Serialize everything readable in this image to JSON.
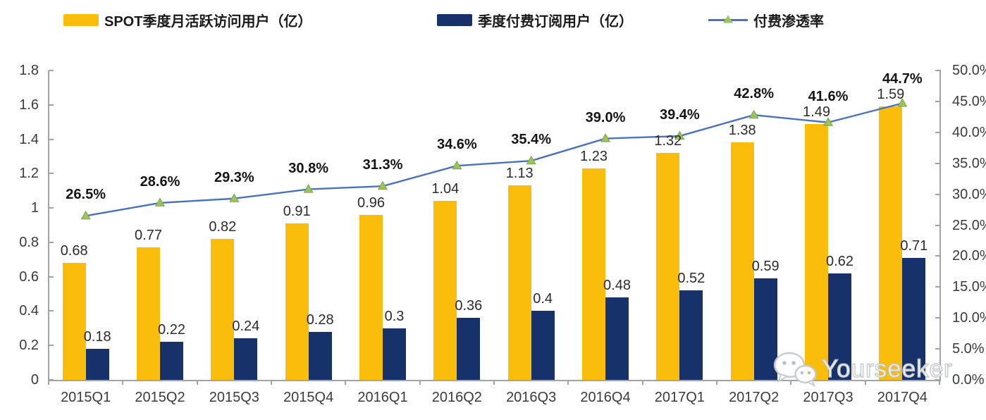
{
  "legend": {
    "items": [
      {
        "label": "SPOT季度月活跃访问用户（亿）",
        "type": "bar",
        "color": "#FBBD0B"
      },
      {
        "label": "季度付费订阅用户（亿）",
        "type": "bar",
        "color": "#17316B"
      },
      {
        "label": "付费渗透率",
        "type": "line",
        "color": "#4A73BE",
        "marker_color": "#9CC25E"
      }
    ]
  },
  "chart_data": {
    "type": "combo-bar-line",
    "title": "",
    "categories": [
      "2015Q1",
      "2015Q2",
      "2015Q3",
      "2015Q4",
      "2016Q1",
      "2016Q2",
      "2016Q3",
      "2016Q4",
      "2017Q1",
      "2017Q2",
      "2017Q3",
      "2017Q4"
    ],
    "series": [
      {
        "name": "SPOT季度月活跃访问用户（亿）",
        "type": "bar",
        "axis": "left",
        "color": "#FBBD0B",
        "values": [
          0.68,
          0.77,
          0.82,
          0.91,
          0.96,
          1.04,
          1.13,
          1.23,
          1.32,
          1.38,
          1.49,
          1.59
        ],
        "labels": [
          "0.68",
          "0.77",
          "0.82",
          "0.91",
          "0.96",
          "1.04",
          "1.13",
          "1.23",
          "1.32",
          "1.38",
          "1.49",
          "1.59"
        ]
      },
      {
        "name": "季度付费订阅用户（亿）",
        "type": "bar",
        "axis": "left",
        "color": "#17316B",
        "values": [
          0.18,
          0.22,
          0.24,
          0.28,
          0.3,
          0.36,
          0.4,
          0.48,
          0.52,
          0.59,
          0.62,
          0.71
        ],
        "labels": [
          "0.18",
          "0.22",
          "0.24",
          "0.28",
          "0.3",
          "0.36",
          "0.4",
          "0.48",
          "0.52",
          "0.59",
          "0.62",
          "0.71"
        ]
      },
      {
        "name": "付费渗透率",
        "type": "line",
        "axis": "right",
        "color": "#4A73BE",
        "marker": "triangle",
        "marker_color": "#9CC25E",
        "marker_edge_color": "#7FA548",
        "values": [
          26.5,
          28.6,
          29.3,
          30.8,
          31.3,
          34.6,
          35.4,
          39.0,
          39.4,
          42.8,
          41.6,
          44.7
        ],
        "labels": [
          "26.5%",
          "28.6%",
          "29.3%",
          "30.8%",
          "31.3%",
          "34.6%",
          "35.4%",
          "39.0%",
          "39.4%",
          "42.8%",
          "41.6%",
          "44.7%"
        ]
      }
    ],
    "left_axis": {
      "min": 0,
      "max": 1.8,
      "step": 0.2,
      "tick_labels": [
        "1.8",
        "1.6",
        "1.4",
        "1.2",
        "1",
        "0.8",
        "0.6",
        "0.4",
        "0.2",
        "0"
      ]
    },
    "right_axis": {
      "min": 0,
      "max": 50,
      "step": 5,
      "tick_labels": [
        "50.0%",
        "45.0%",
        "40.0%",
        "35.0%",
        "30.0%",
        "25.0%",
        "20.0%",
        "15.0%",
        "10.0%",
        "5.0%",
        "0.0%"
      ]
    },
    "grid": false,
    "legend_position": "top"
  },
  "watermark": {
    "text": "Yourseeker",
    "icon": "wechat-icon"
  }
}
